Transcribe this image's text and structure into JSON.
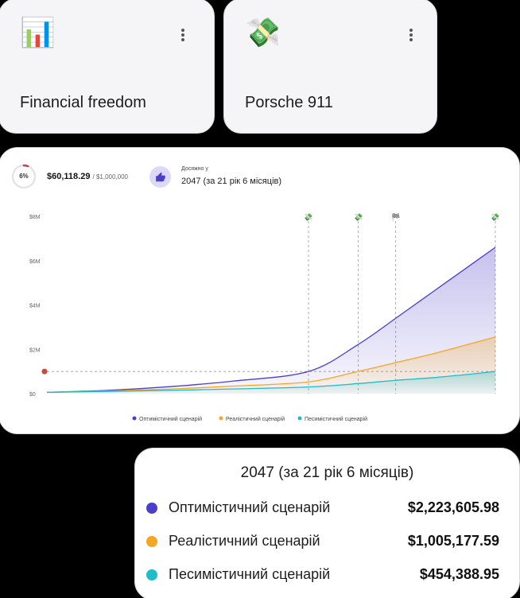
{
  "goals": [
    {
      "emoji": "📊",
      "title": "Financial freedom"
    },
    {
      "emoji": "💸",
      "title": "Porsche 911"
    }
  ],
  "progress": {
    "percent_label": "6%",
    "fraction": 0.06,
    "current": "$60,118.29",
    "target": "/ $1,000,000",
    "achieved_label": "Досяжно у",
    "achieved_value": "2047 (за 21 рік 6 місяців)"
  },
  "colors": {
    "optimistic": "#4b3ec9",
    "realistic": "#f5a623",
    "pessimistic": "#1ebcc6",
    "ring": "#d63a3a"
  },
  "chart_data": {
    "type": "area",
    "y_ticks": [
      "$8M",
      "$6M",
      "$4M",
      "$2M",
      "$0"
    ],
    "ylim": [
      0,
      8000000
    ],
    "xlim": [
      2026,
      2062
    ],
    "goal_line": 1000000,
    "markers": [
      {
        "x": 2047,
        "icon": "💸"
      },
      {
        "x": 2051,
        "icon": "💸"
      },
      {
        "x": 2054,
        "icon": "🏁"
      },
      {
        "x": 2062,
        "icon": "💸"
      }
    ],
    "series": [
      {
        "name": "Оптимістичний сценарій",
        "x": [
          2026,
          2031,
          2036,
          2041,
          2047,
          2051,
          2054,
          2057,
          2060,
          2062
        ],
        "values": [
          60118,
          150000,
          320000,
          570000,
          1000000,
          2223606,
          3400000,
          4600000,
          5800000,
          6600000
        ]
      },
      {
        "name": "Реалістичний сценарій",
        "x": [
          2026,
          2031,
          2036,
          2041,
          2047,
          2051,
          2054,
          2057,
          2060,
          2062
        ],
        "values": [
          60118,
          120000,
          210000,
          340000,
          530000,
          1005178,
          1400000,
          1800000,
          2250000,
          2550000
        ]
      },
      {
        "name": "Песимістичний сценарій",
        "x": [
          2026,
          2031,
          2036,
          2041,
          2047,
          2051,
          2054,
          2057,
          2060,
          2062
        ],
        "values": [
          60118,
          100000,
          150000,
          210000,
          300000,
          454389,
          600000,
          720000,
          880000,
          1000000
        ]
      }
    ]
  },
  "summary": {
    "title": "2047 (за 21 рік 6 місяців)",
    "rows": [
      {
        "name": "Оптимістичний сценарій",
        "value": "$2,223,605.98"
      },
      {
        "name": "Реалістичний сценарій",
        "value": "$1,005,177.59"
      },
      {
        "name": "Песимістичний сценарій",
        "value": "$454,388.95"
      }
    ]
  }
}
